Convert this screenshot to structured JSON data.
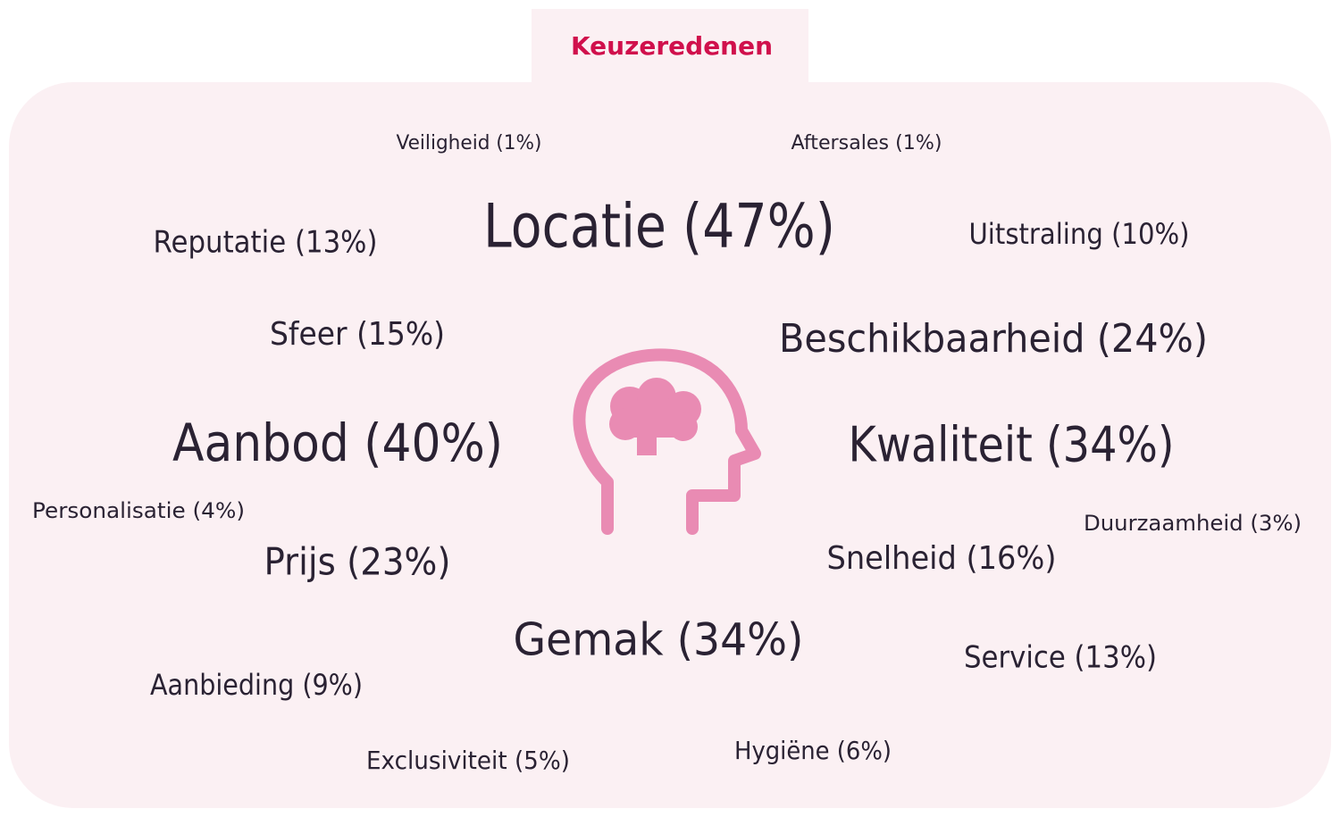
{
  "title": "Keuzeredenen",
  "words": [
    "Veiligheid (1%)",
    "Aftersales (1%)",
    "Locatie (47%)",
    "Reputatie (13%)",
    "Uitstraling (10%)",
    "Sfeer (15%)",
    "Beschikbaarheid (24%)",
    "Aanbod (40%)",
    "Kwaliteit (34%)",
    "Personalisatie (4%)",
    "Duurzaamheid (3%)",
    "Prijs (23%)",
    "Snelheid (16%)",
    "Gemak (34%)",
    "Service (13%)",
    "Aanbieding (9%)",
    "Exclusiviteit (5%)",
    "Hygiëne (6%)"
  ]
}
